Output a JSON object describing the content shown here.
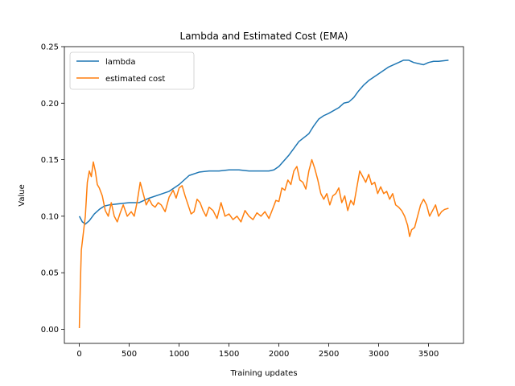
{
  "chart_data": {
    "type": "line",
    "title": "Lambda and Estimated Cost (EMA)",
    "xlabel": "Training updates",
    "ylabel": "Value",
    "xlim": [
      -150,
      3850
    ],
    "ylim": [
      -0.0125,
      0.25
    ],
    "xticks": [
      0,
      500,
      1000,
      1500,
      2000,
      2500,
      3000,
      3500
    ],
    "yticks": [
      0.0,
      0.05,
      0.1,
      0.15,
      0.2,
      0.25
    ],
    "ytick_labels": [
      "0.00",
      "0.05",
      "0.10",
      "0.15",
      "0.20",
      "0.25"
    ],
    "grid": false,
    "legend_position": "upper-left",
    "series": [
      {
        "name": "lambda",
        "color": "#1f77b4",
        "points": [
          [
            0,
            0.1
          ],
          [
            30,
            0.095
          ],
          [
            60,
            0.093
          ],
          [
            100,
            0.096
          ],
          [
            150,
            0.102
          ],
          [
            200,
            0.106
          ],
          [
            250,
            0.109
          ],
          [
            300,
            0.11
          ],
          [
            400,
            0.111
          ],
          [
            500,
            0.112
          ],
          [
            600,
            0.112
          ],
          [
            700,
            0.116
          ],
          [
            800,
            0.119
          ],
          [
            900,
            0.122
          ],
          [
            1000,
            0.128
          ],
          [
            1100,
            0.136
          ],
          [
            1200,
            0.139
          ],
          [
            1300,
            0.14
          ],
          [
            1400,
            0.14
          ],
          [
            1500,
            0.141
          ],
          [
            1600,
            0.141
          ],
          [
            1700,
            0.14
          ],
          [
            1800,
            0.14
          ],
          [
            1900,
            0.14
          ],
          [
            1950,
            0.141
          ],
          [
            2000,
            0.144
          ],
          [
            2050,
            0.149
          ],
          [
            2100,
            0.154
          ],
          [
            2150,
            0.16
          ],
          [
            2200,
            0.166
          ],
          [
            2300,
            0.173
          ],
          [
            2350,
            0.18
          ],
          [
            2400,
            0.186
          ],
          [
            2450,
            0.189
          ],
          [
            2500,
            0.191
          ],
          [
            2600,
            0.196
          ],
          [
            2650,
            0.2
          ],
          [
            2700,
            0.201
          ],
          [
            2750,
            0.205
          ],
          [
            2800,
            0.211
          ],
          [
            2850,
            0.216
          ],
          [
            2900,
            0.22
          ],
          [
            3000,
            0.226
          ],
          [
            3100,
            0.232
          ],
          [
            3200,
            0.236
          ],
          [
            3250,
            0.238
          ],
          [
            3300,
            0.238
          ],
          [
            3350,
            0.236
          ],
          [
            3400,
            0.235
          ],
          [
            3450,
            0.234
          ],
          [
            3500,
            0.236
          ],
          [
            3550,
            0.237
          ],
          [
            3600,
            0.237
          ],
          [
            3700,
            0.238
          ]
        ]
      },
      {
        "name": "estimated cost",
        "color": "#ff7f0e",
        "points": [
          [
            0,
            0.001
          ],
          [
            10,
            0.04
          ],
          [
            20,
            0.07
          ],
          [
            40,
            0.085
          ],
          [
            60,
            0.1
          ],
          [
            80,
            0.13
          ],
          [
            100,
            0.14
          ],
          [
            120,
            0.135
          ],
          [
            140,
            0.148
          ],
          [
            160,
            0.14
          ],
          [
            180,
            0.128
          ],
          [
            200,
            0.125
          ],
          [
            230,
            0.118
          ],
          [
            260,
            0.105
          ],
          [
            290,
            0.1
          ],
          [
            320,
            0.112
          ],
          [
            350,
            0.1
          ],
          [
            380,
            0.095
          ],
          [
            410,
            0.103
          ],
          [
            440,
            0.11
          ],
          [
            480,
            0.1
          ],
          [
            520,
            0.104
          ],
          [
            550,
            0.1
          ],
          [
            580,
            0.113
          ],
          [
            610,
            0.13
          ],
          [
            640,
            0.12
          ],
          [
            670,
            0.11
          ],
          [
            700,
            0.115
          ],
          [
            730,
            0.11
          ],
          [
            760,
            0.108
          ],
          [
            790,
            0.112
          ],
          [
            820,
            0.11
          ],
          [
            860,
            0.104
          ],
          [
            900,
            0.117
          ],
          [
            940,
            0.123
          ],
          [
            970,
            0.116
          ],
          [
            1000,
            0.125
          ],
          [
            1030,
            0.127
          ],
          [
            1060,
            0.118
          ],
          [
            1090,
            0.11
          ],
          [
            1120,
            0.102
          ],
          [
            1150,
            0.104
          ],
          [
            1180,
            0.115
          ],
          [
            1210,
            0.112
          ],
          [
            1240,
            0.105
          ],
          [
            1270,
            0.1
          ],
          [
            1300,
            0.108
          ],
          [
            1340,
            0.105
          ],
          [
            1380,
            0.098
          ],
          [
            1420,
            0.112
          ],
          [
            1460,
            0.1
          ],
          [
            1500,
            0.102
          ],
          [
            1540,
            0.097
          ],
          [
            1580,
            0.1
          ],
          [
            1620,
            0.095
          ],
          [
            1660,
            0.105
          ],
          [
            1700,
            0.1
          ],
          [
            1740,
            0.097
          ],
          [
            1780,
            0.103
          ],
          [
            1820,
            0.1
          ],
          [
            1860,
            0.104
          ],
          [
            1900,
            0.098
          ],
          [
            1940,
            0.107
          ],
          [
            1970,
            0.114
          ],
          [
            2000,
            0.113
          ],
          [
            2030,
            0.125
          ],
          [
            2060,
            0.123
          ],
          [
            2090,
            0.132
          ],
          [
            2120,
            0.128
          ],
          [
            2150,
            0.14
          ],
          [
            2180,
            0.144
          ],
          [
            2210,
            0.132
          ],
          [
            2240,
            0.13
          ],
          [
            2270,
            0.124
          ],
          [
            2300,
            0.14
          ],
          [
            2330,
            0.15
          ],
          [
            2360,
            0.142
          ],
          [
            2390,
            0.132
          ],
          [
            2420,
            0.12
          ],
          [
            2450,
            0.115
          ],
          [
            2480,
            0.12
          ],
          [
            2510,
            0.11
          ],
          [
            2540,
            0.118
          ],
          [
            2570,
            0.12
          ],
          [
            2600,
            0.125
          ],
          [
            2630,
            0.112
          ],
          [
            2660,
            0.118
          ],
          [
            2690,
            0.105
          ],
          [
            2720,
            0.114
          ],
          [
            2750,
            0.11
          ],
          [
            2780,
            0.125
          ],
          [
            2810,
            0.14
          ],
          [
            2840,
            0.135
          ],
          [
            2870,
            0.13
          ],
          [
            2900,
            0.137
          ],
          [
            2930,
            0.128
          ],
          [
            2960,
            0.13
          ],
          [
            2990,
            0.12
          ],
          [
            3020,
            0.126
          ],
          [
            3050,
            0.12
          ],
          [
            3080,
            0.122
          ],
          [
            3110,
            0.115
          ],
          [
            3140,
            0.12
          ],
          [
            3170,
            0.11
          ],
          [
            3200,
            0.108
          ],
          [
            3230,
            0.105
          ],
          [
            3260,
            0.1
          ],
          [
            3290,
            0.092
          ],
          [
            3310,
            0.082
          ],
          [
            3330,
            0.088
          ],
          [
            3360,
            0.09
          ],
          [
            3390,
            0.1
          ],
          [
            3420,
            0.11
          ],
          [
            3450,
            0.115
          ],
          [
            3480,
            0.11
          ],
          [
            3510,
            0.1
          ],
          [
            3540,
            0.105
          ],
          [
            3570,
            0.11
          ],
          [
            3600,
            0.1
          ],
          [
            3630,
            0.104
          ],
          [
            3660,
            0.106
          ],
          [
            3700,
            0.107
          ]
        ]
      }
    ]
  }
}
